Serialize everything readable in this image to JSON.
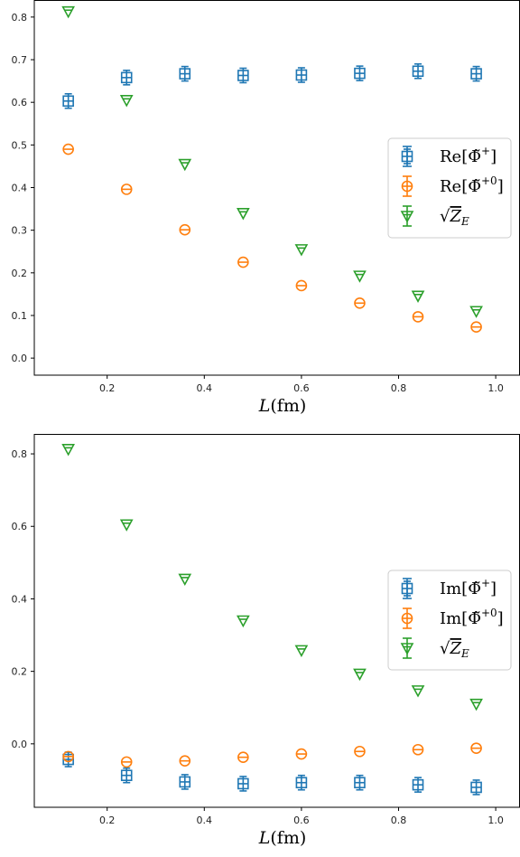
{
  "colors": {
    "re": "#1f77b4",
    "zero": "#ff7f0e",
    "ze": "#2ca02c"
  },
  "chart_data": [
    {
      "type": "scatter",
      "title": "",
      "xlabel": "L(fm)",
      "ylabel": "",
      "xlim": [
        0.05,
        1.05
      ],
      "ylim": [
        -0.04,
        0.84
      ],
      "xticks": [
        "0.2",
        "0.4",
        "0.6",
        "0.8",
        "1.0"
      ],
      "yticks": [
        "0.0",
        "0.1",
        "0.2",
        "0.3",
        "0.4",
        "0.5",
        "0.6",
        "0.7",
        "0.8"
      ],
      "legend_position": "right",
      "series": [
        {
          "name": "Re[Φ̃+]",
          "marker": "square",
          "color": "#1f77b4",
          "x": [
            0.12,
            0.24,
            0.36,
            0.48,
            0.6,
            0.72,
            0.84,
            0.96
          ],
          "y": [
            0.603,
            0.658,
            0.667,
            0.663,
            0.664,
            0.668,
            0.673,
            0.667
          ]
        },
        {
          "name": "Re[Φ̃+0]",
          "marker": "circle",
          "color": "#ff7f0e",
          "x": [
            0.12,
            0.24,
            0.36,
            0.48,
            0.6,
            0.72,
            0.84,
            0.96
          ],
          "y": [
            0.49,
            0.396,
            0.301,
            0.225,
            0.17,
            0.129,
            0.097,
            0.073
          ]
        },
        {
          "name": "√Z_E",
          "marker": "triangle_down",
          "color": "#2ca02c",
          "x": [
            0.12,
            0.24,
            0.36,
            0.48,
            0.6,
            0.72,
            0.84,
            0.96
          ],
          "y": [
            0.813,
            0.605,
            0.455,
            0.34,
            0.255,
            0.193,
            0.146,
            0.11
          ]
        }
      ]
    },
    {
      "type": "scatter",
      "title": "",
      "xlabel": "L(fm)",
      "ylabel": "",
      "xlim": [
        0.05,
        1.05
      ],
      "ylim": [
        -0.175,
        0.855
      ],
      "xticks": [
        "0.2",
        "0.4",
        "0.6",
        "0.8",
        "1.0"
      ],
      "yticks": [
        "0.0",
        "0.2",
        "0.4",
        "0.6",
        "0.8"
      ],
      "legend_position": "right",
      "series": [
        {
          "name": "Im[Φ̃+]",
          "marker": "square",
          "color": "#1f77b4",
          "x": [
            0.12,
            0.24,
            0.36,
            0.48,
            0.6,
            0.72,
            0.84,
            0.96
          ],
          "y": [
            -0.043,
            -0.087,
            -0.105,
            -0.11,
            -0.107,
            -0.107,
            -0.113,
            -0.12
          ]
        },
        {
          "name": "Im[Φ̃+0]",
          "marker": "circle",
          "color": "#ff7f0e",
          "x": [
            0.12,
            0.24,
            0.36,
            0.48,
            0.6,
            0.72,
            0.84,
            0.96
          ],
          "y": [
            -0.035,
            -0.05,
            -0.047,
            -0.037,
            -0.028,
            -0.021,
            -0.016,
            -0.012
          ]
        },
        {
          "name": "√Z_E",
          "marker": "triangle_down",
          "color": "#2ca02c",
          "x": [
            0.12,
            0.24,
            0.36,
            0.48,
            0.6,
            0.72,
            0.84,
            0.96
          ],
          "y": [
            0.813,
            0.605,
            0.455,
            0.34,
            0.258,
            0.193,
            0.147,
            0.11
          ]
        }
      ]
    }
  ]
}
